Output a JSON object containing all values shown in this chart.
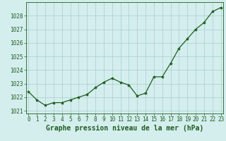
{
  "x": [
    0,
    1,
    2,
    3,
    4,
    5,
    6,
    7,
    8,
    9,
    10,
    11,
    12,
    13,
    14,
    15,
    16,
    17,
    18,
    19,
    20,
    21,
    22,
    23
  ],
  "y": [
    1022.4,
    1021.8,
    1021.4,
    1021.6,
    1021.6,
    1021.8,
    1022.0,
    1022.2,
    1022.7,
    1023.1,
    1023.4,
    1023.1,
    1022.9,
    1022.1,
    1022.3,
    1023.5,
    1023.5,
    1024.5,
    1025.6,
    1026.3,
    1027.0,
    1027.5,
    1028.3,
    1028.6
  ],
  "ylim": [
    1020.8,
    1029.0
  ],
  "xlim": [
    -0.3,
    23.3
  ],
  "yticks": [
    1021,
    1022,
    1023,
    1024,
    1025,
    1026,
    1027,
    1028
  ],
  "xticks": [
    0,
    1,
    2,
    3,
    4,
    5,
    6,
    7,
    8,
    9,
    10,
    11,
    12,
    13,
    14,
    15,
    16,
    17,
    18,
    19,
    20,
    21,
    22,
    23
  ],
  "line_color": "#1f5c1f",
  "marker_color": "#1f5c1f",
  "bg_color": "#d4eeee",
  "grid_color": "#aacccc",
  "xlabel": "Graphe pression niveau de la mer (hPa)",
  "xlabel_color": "#1f5c1f",
  "tick_color": "#1f5c1f",
  "axis_label_fontsize": 7.0,
  "tick_fontsize": 5.5,
  "ylabel_fontsize": 5.5
}
